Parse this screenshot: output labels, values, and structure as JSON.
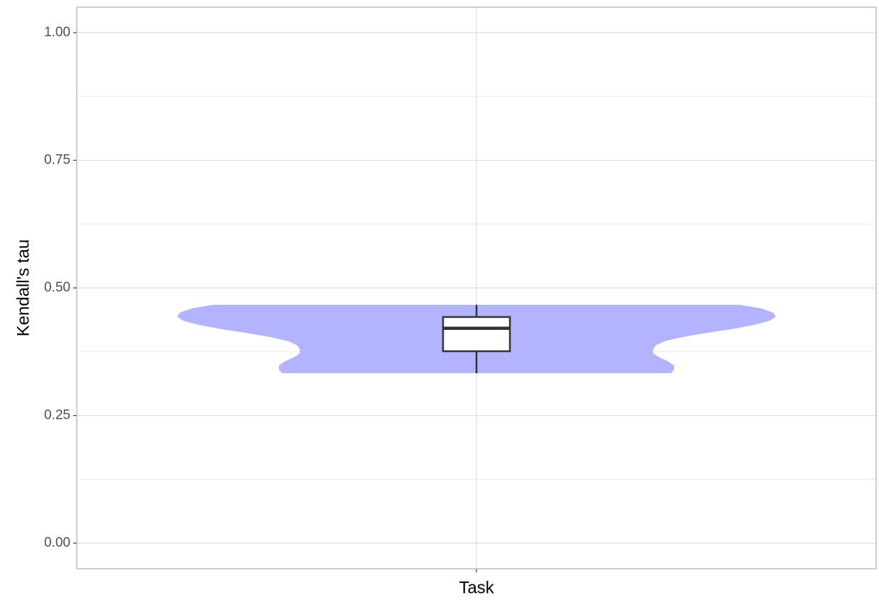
{
  "chart_data": {
    "type": "violin",
    "categories": [
      "Task"
    ],
    "ylabel": "Kendall's tau",
    "ylim": [
      -0.05,
      1.05
    ],
    "yticks": [
      {
        "value": 0,
        "label": "0.00"
      },
      {
        "value": 0.25,
        "label": "0.25"
      },
      {
        "value": 0.5,
        "label": "0.50"
      },
      {
        "value": 0.75,
        "label": "0.75"
      },
      {
        "value": 1,
        "label": "1.00"
      }
    ],
    "yminor": [
      0.125,
      0.375,
      0.625,
      0.875
    ],
    "grid": true,
    "color": "#b3b3ff",
    "violin": {
      "y": [
        0.467,
        0.46,
        0.452,
        0.444,
        0.436,
        0.428,
        0.42,
        0.412,
        0.404,
        0.396,
        0.388,
        0.38,
        0.372,
        0.364,
        0.356,
        0.348,
        0.34,
        0.333
      ],
      "density": [
        0.88,
        0.95,
        0.99,
        1.0,
        0.98,
        0.93,
        0.86,
        0.77,
        0.69,
        0.63,
        0.6,
        0.59,
        0.59,
        0.61,
        0.64,
        0.66,
        0.66,
        0.65
      ]
    },
    "box": {
      "whisker_low": 0.333,
      "q1": 0.376,
      "median": 0.421,
      "q3": 0.443,
      "whisker_high": 0.467
    }
  }
}
